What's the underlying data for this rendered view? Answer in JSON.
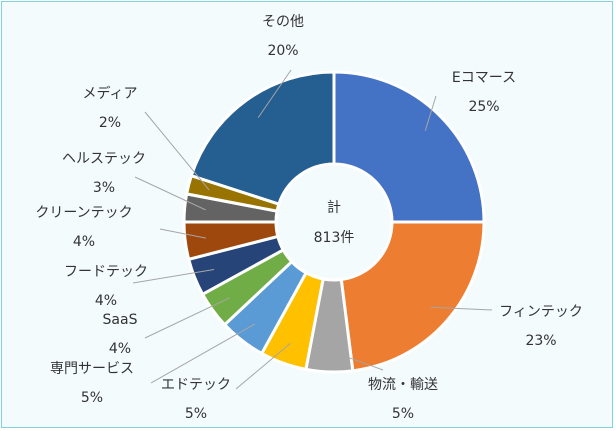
{
  "chart_data": {
    "type": "pie",
    "donut": true,
    "center_label": [
      "計",
      "813件"
    ],
    "slices": [
      {
        "name": "Eコマース",
        "pct_label": "25%",
        "value": 25,
        "color": "#4472c4"
      },
      {
        "name": "フィンテック",
        "pct_label": "23%",
        "value": 23,
        "color": "#ed7d31"
      },
      {
        "name": "物流・輸送",
        "pct_label": "5%",
        "value": 5,
        "color": "#a5a5a5"
      },
      {
        "name": "エドテック",
        "pct_label": "5%",
        "value": 5,
        "color": "#ffc000"
      },
      {
        "name": "専門サービス",
        "pct_label": "5%",
        "value": 5,
        "color": "#5b9bd5"
      },
      {
        "name": "SaaS",
        "pct_label": "4%",
        "value": 4,
        "color": "#70ad47"
      },
      {
        "name": "フードテック",
        "pct_label": "4%",
        "value": 4,
        "color": "#264478"
      },
      {
        "name": "クリーンテック",
        "pct_label": "4%",
        "value": 4,
        "color": "#9e480e"
      },
      {
        "name": "ヘルステック",
        "pct_label": "3%",
        "value": 3,
        "color": "#636363"
      },
      {
        "name": "メディア",
        "pct_label": "2%",
        "value": 2,
        "color": "#997300"
      },
      {
        "name": "その他",
        "pct_label": "20%",
        "value": 20,
        "color": "#255e91"
      }
    ]
  }
}
